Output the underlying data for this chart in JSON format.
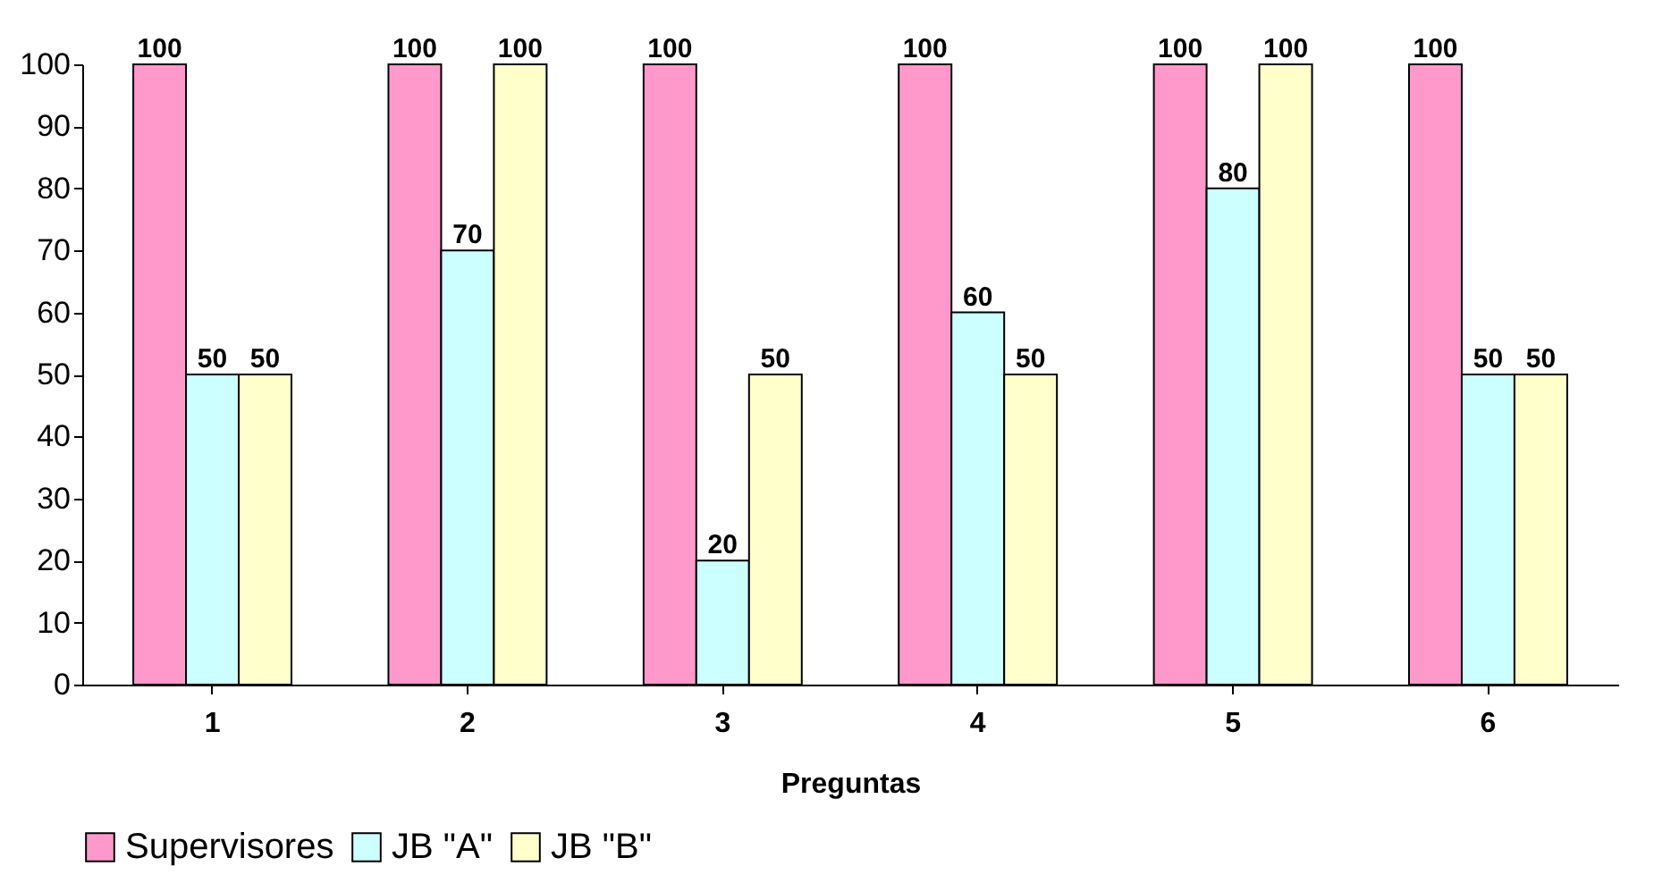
{
  "chart_data": {
    "type": "bar",
    "xlabel": "Preguntas",
    "categories": [
      "1",
      "2",
      "3",
      "4",
      "5",
      "6"
    ],
    "series": [
      {
        "name": "Supervisores",
        "color": "#ff99cc",
        "values": [
          100,
          100,
          100,
          100,
          100,
          100
        ]
      },
      {
        "name": "JB \"A\"",
        "color": "#ccffff",
        "values": [
          50,
          70,
          20,
          60,
          80,
          50
        ]
      },
      {
        "name": "JB \"B\"",
        "color": "#ffffcc",
        "values": [
          50,
          100,
          50,
          50,
          100,
          50
        ]
      }
    ],
    "ylim": [
      0,
      100
    ],
    "yticks": [
      0,
      10,
      20,
      30,
      40,
      50,
      60,
      70,
      80,
      90,
      100
    ],
    "grid": false,
    "legend": "bottom",
    "data_labels": true
  }
}
